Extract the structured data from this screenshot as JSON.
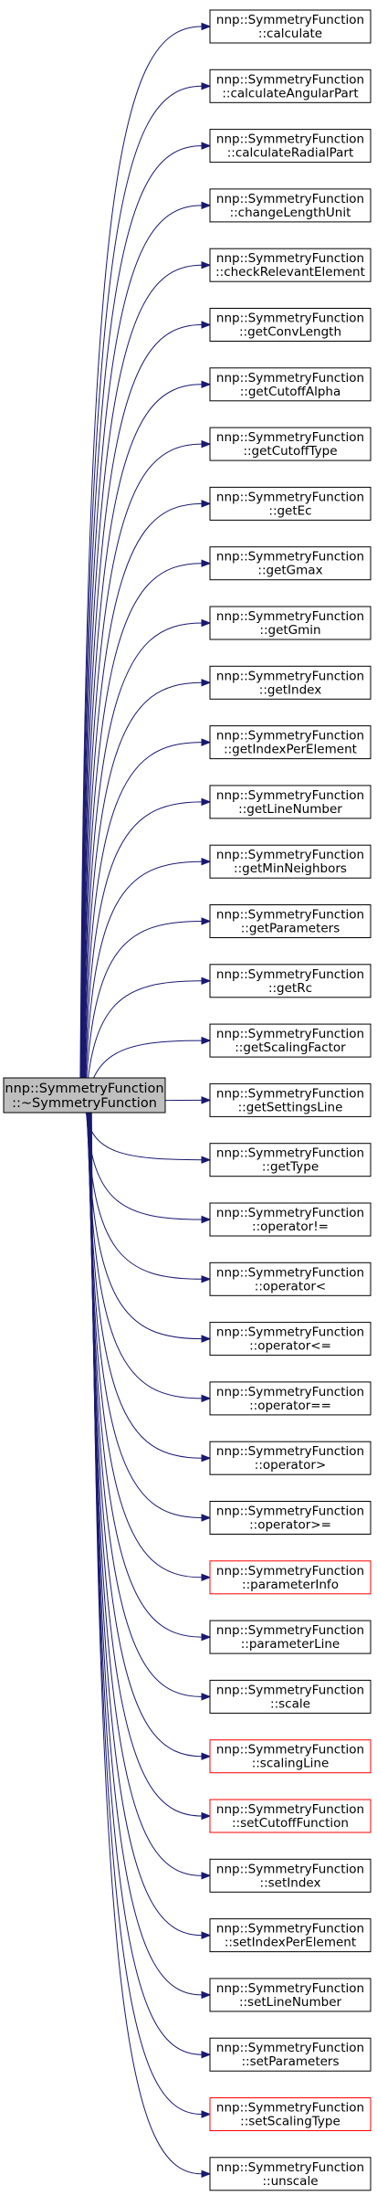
{
  "diagram": {
    "kind": "call-graph",
    "colors": {
      "edge": "#191970",
      "root_fill": "#bfbfbf",
      "normal_border": "#000000",
      "missing_border": "#ff0000"
    },
    "root": {
      "line1": "nnp::SymmetryFunction",
      "line2": "::~SymmetryFunction"
    },
    "callees": [
      {
        "line1": "nnp::SymmetryFunction",
        "line2": "::calculate",
        "border": "black"
      },
      {
        "line1": "nnp::SymmetryFunction",
        "line2": "::calculateAngularPart",
        "border": "black"
      },
      {
        "line1": "nnp::SymmetryFunction",
        "line2": "::calculateRadialPart",
        "border": "black"
      },
      {
        "line1": "nnp::SymmetryFunction",
        "line2": "::changeLengthUnit",
        "border": "black"
      },
      {
        "line1": "nnp::SymmetryFunction",
        "line2": "::checkRelevantElement",
        "border": "black"
      },
      {
        "line1": "nnp::SymmetryFunction",
        "line2": "::getConvLength",
        "border": "black"
      },
      {
        "line1": "nnp::SymmetryFunction",
        "line2": "::getCutoffAlpha",
        "border": "black"
      },
      {
        "line1": "nnp::SymmetryFunction",
        "line2": "::getCutoffType",
        "border": "black"
      },
      {
        "line1": "nnp::SymmetryFunction",
        "line2": "::getEc",
        "border": "black"
      },
      {
        "line1": "nnp::SymmetryFunction",
        "line2": "::getGmax",
        "border": "black"
      },
      {
        "line1": "nnp::SymmetryFunction",
        "line2": "::getGmin",
        "border": "black"
      },
      {
        "line1": "nnp::SymmetryFunction",
        "line2": "::getIndex",
        "border": "black"
      },
      {
        "line1": "nnp::SymmetryFunction",
        "line2": "::getIndexPerElement",
        "border": "black"
      },
      {
        "line1": "nnp::SymmetryFunction",
        "line2": "::getLineNumber",
        "border": "black"
      },
      {
        "line1": "nnp::SymmetryFunction",
        "line2": "::getMinNeighbors",
        "border": "black"
      },
      {
        "line1": "nnp::SymmetryFunction",
        "line2": "::getParameters",
        "border": "black"
      },
      {
        "line1": "nnp::SymmetryFunction",
        "line2": "::getRc",
        "border": "black"
      },
      {
        "line1": "nnp::SymmetryFunction",
        "line2": "::getScalingFactor",
        "border": "black"
      },
      {
        "line1": "nnp::SymmetryFunction",
        "line2": "::getSettingsLine",
        "border": "black"
      },
      {
        "line1": "nnp::SymmetryFunction",
        "line2": "::getType",
        "border": "black"
      },
      {
        "line1": "nnp::SymmetryFunction",
        "line2": "::operator!=",
        "border": "black"
      },
      {
        "line1": "nnp::SymmetryFunction",
        "line2": "::operator<",
        "border": "black"
      },
      {
        "line1": "nnp::SymmetryFunction",
        "line2": "::operator<=",
        "border": "black"
      },
      {
        "line1": "nnp::SymmetryFunction",
        "line2": "::operator==",
        "border": "black"
      },
      {
        "line1": "nnp::SymmetryFunction",
        "line2": "::operator>",
        "border": "black"
      },
      {
        "line1": "nnp::SymmetryFunction",
        "line2": "::operator>=",
        "border": "black"
      },
      {
        "line1": "nnp::SymmetryFunction",
        "line2": "::parameterInfo",
        "border": "red"
      },
      {
        "line1": "nnp::SymmetryFunction",
        "line2": "::parameterLine",
        "border": "black"
      },
      {
        "line1": "nnp::SymmetryFunction",
        "line2": "::scale",
        "border": "black"
      },
      {
        "line1": "nnp::SymmetryFunction",
        "line2": "::scalingLine",
        "border": "red"
      },
      {
        "line1": "nnp::SymmetryFunction",
        "line2": "::setCutoffFunction",
        "border": "red"
      },
      {
        "line1": "nnp::SymmetryFunction",
        "line2": "::setIndex",
        "border": "black"
      },
      {
        "line1": "nnp::SymmetryFunction",
        "line2": "::setIndexPerElement",
        "border": "black"
      },
      {
        "line1": "nnp::SymmetryFunction",
        "line2": "::setLineNumber",
        "border": "black"
      },
      {
        "line1": "nnp::SymmetryFunction",
        "line2": "::setParameters",
        "border": "black"
      },
      {
        "line1": "nnp::SymmetryFunction",
        "line2": "::setScalingType",
        "border": "red"
      },
      {
        "line1": "nnp::SymmetryFunction",
        "line2": "::unscale",
        "border": "black"
      }
    ]
  }
}
